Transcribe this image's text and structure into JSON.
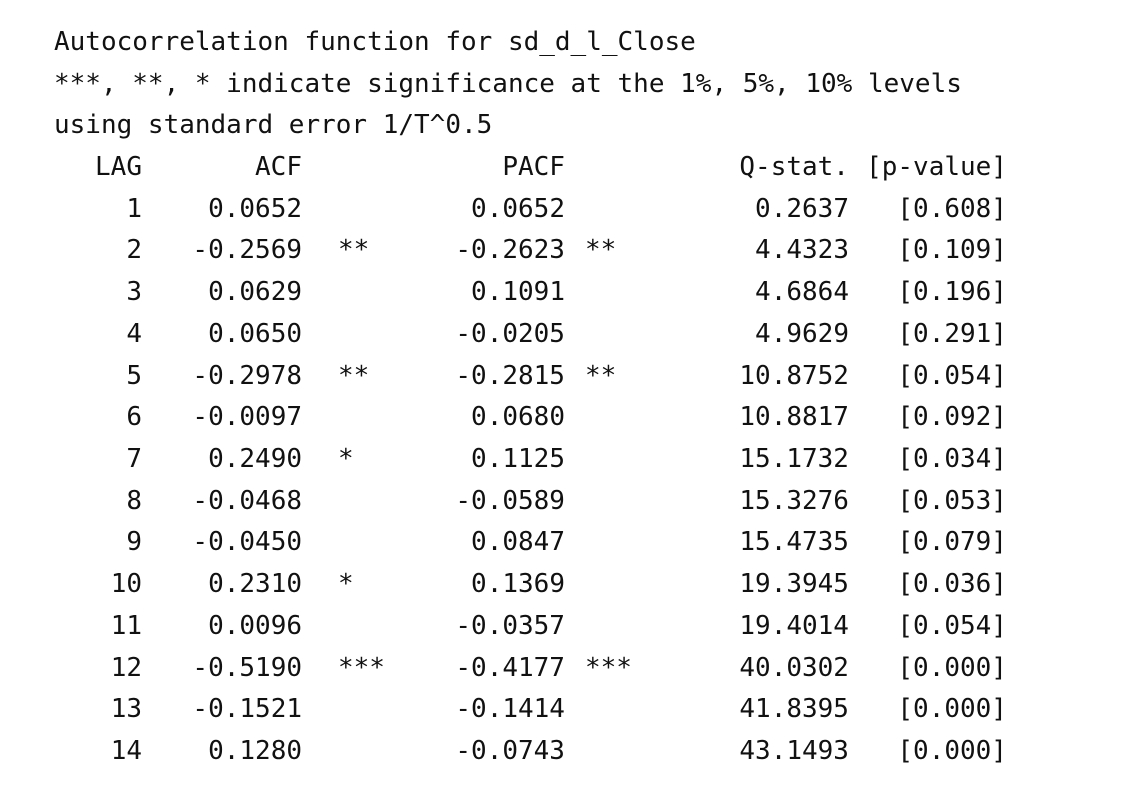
{
  "header": {
    "title": "Autocorrelation function for sd_d_l_Close",
    "significance_note": "***, **, * indicate significance at the 1%, 5%, 10% levels",
    "std_error_note": "using standard error 1/T^0.5"
  },
  "table": {
    "columns": {
      "lag": "LAG",
      "acf": "ACF",
      "pacf": "PACF",
      "qstat": "Q-stat.",
      "pvalue": "[p-value]"
    },
    "rows": [
      {
        "lag": "1",
        "acf": "0.0652",
        "acf_sig": "",
        "pacf": "0.0652",
        "pacf_sig": "",
        "q": "0.2637",
        "p": "[0.608]"
      },
      {
        "lag": "2",
        "acf": "-0.2569",
        "acf_sig": "**",
        "pacf": "-0.2623",
        "pacf_sig": "**",
        "q": "4.4323",
        "p": "[0.109]"
      },
      {
        "lag": "3",
        "acf": "0.0629",
        "acf_sig": "",
        "pacf": "0.1091",
        "pacf_sig": "",
        "q": "4.6864",
        "p": "[0.196]"
      },
      {
        "lag": "4",
        "acf": "0.0650",
        "acf_sig": "",
        "pacf": "-0.0205",
        "pacf_sig": "",
        "q": "4.9629",
        "p": "[0.291]"
      },
      {
        "lag": "5",
        "acf": "-0.2978",
        "acf_sig": "**",
        "pacf": "-0.2815",
        "pacf_sig": "**",
        "q": "10.8752",
        "p": "[0.054]"
      },
      {
        "lag": "6",
        "acf": "-0.0097",
        "acf_sig": "",
        "pacf": "0.0680",
        "pacf_sig": "",
        "q": "10.8817",
        "p": "[0.092]"
      },
      {
        "lag": "7",
        "acf": "0.2490",
        "acf_sig": "*",
        "pacf": "0.1125",
        "pacf_sig": "",
        "q": "15.1732",
        "p": "[0.034]"
      },
      {
        "lag": "8",
        "acf": "-0.0468",
        "acf_sig": "",
        "pacf": "-0.0589",
        "pacf_sig": "",
        "q": "15.3276",
        "p": "[0.053]"
      },
      {
        "lag": "9",
        "acf": "-0.0450",
        "acf_sig": "",
        "pacf": "0.0847",
        "pacf_sig": "",
        "q": "15.4735",
        "p": "[0.079]"
      },
      {
        "lag": "10",
        "acf": "0.2310",
        "acf_sig": "*",
        "pacf": "0.1369",
        "pacf_sig": "",
        "q": "19.3945",
        "p": "[0.036]"
      },
      {
        "lag": "11",
        "acf": "0.0096",
        "acf_sig": "",
        "pacf": "-0.0357",
        "pacf_sig": "",
        "q": "19.4014",
        "p": "[0.054]"
      },
      {
        "lag": "12",
        "acf": "-0.5190",
        "acf_sig": "***",
        "pacf": "-0.4177",
        "pacf_sig": "***",
        "q": "40.0302",
        "p": "[0.000]"
      },
      {
        "lag": "13",
        "acf": "-0.1521",
        "acf_sig": "",
        "pacf": "-0.1414",
        "pacf_sig": "",
        "q": "41.8395",
        "p": "[0.000]"
      },
      {
        "lag": "14",
        "acf": "0.1280",
        "acf_sig": "",
        "pacf": "-0.0743",
        "pacf_sig": "",
        "q": "43.1493",
        "p": "[0.000]"
      }
    ]
  }
}
